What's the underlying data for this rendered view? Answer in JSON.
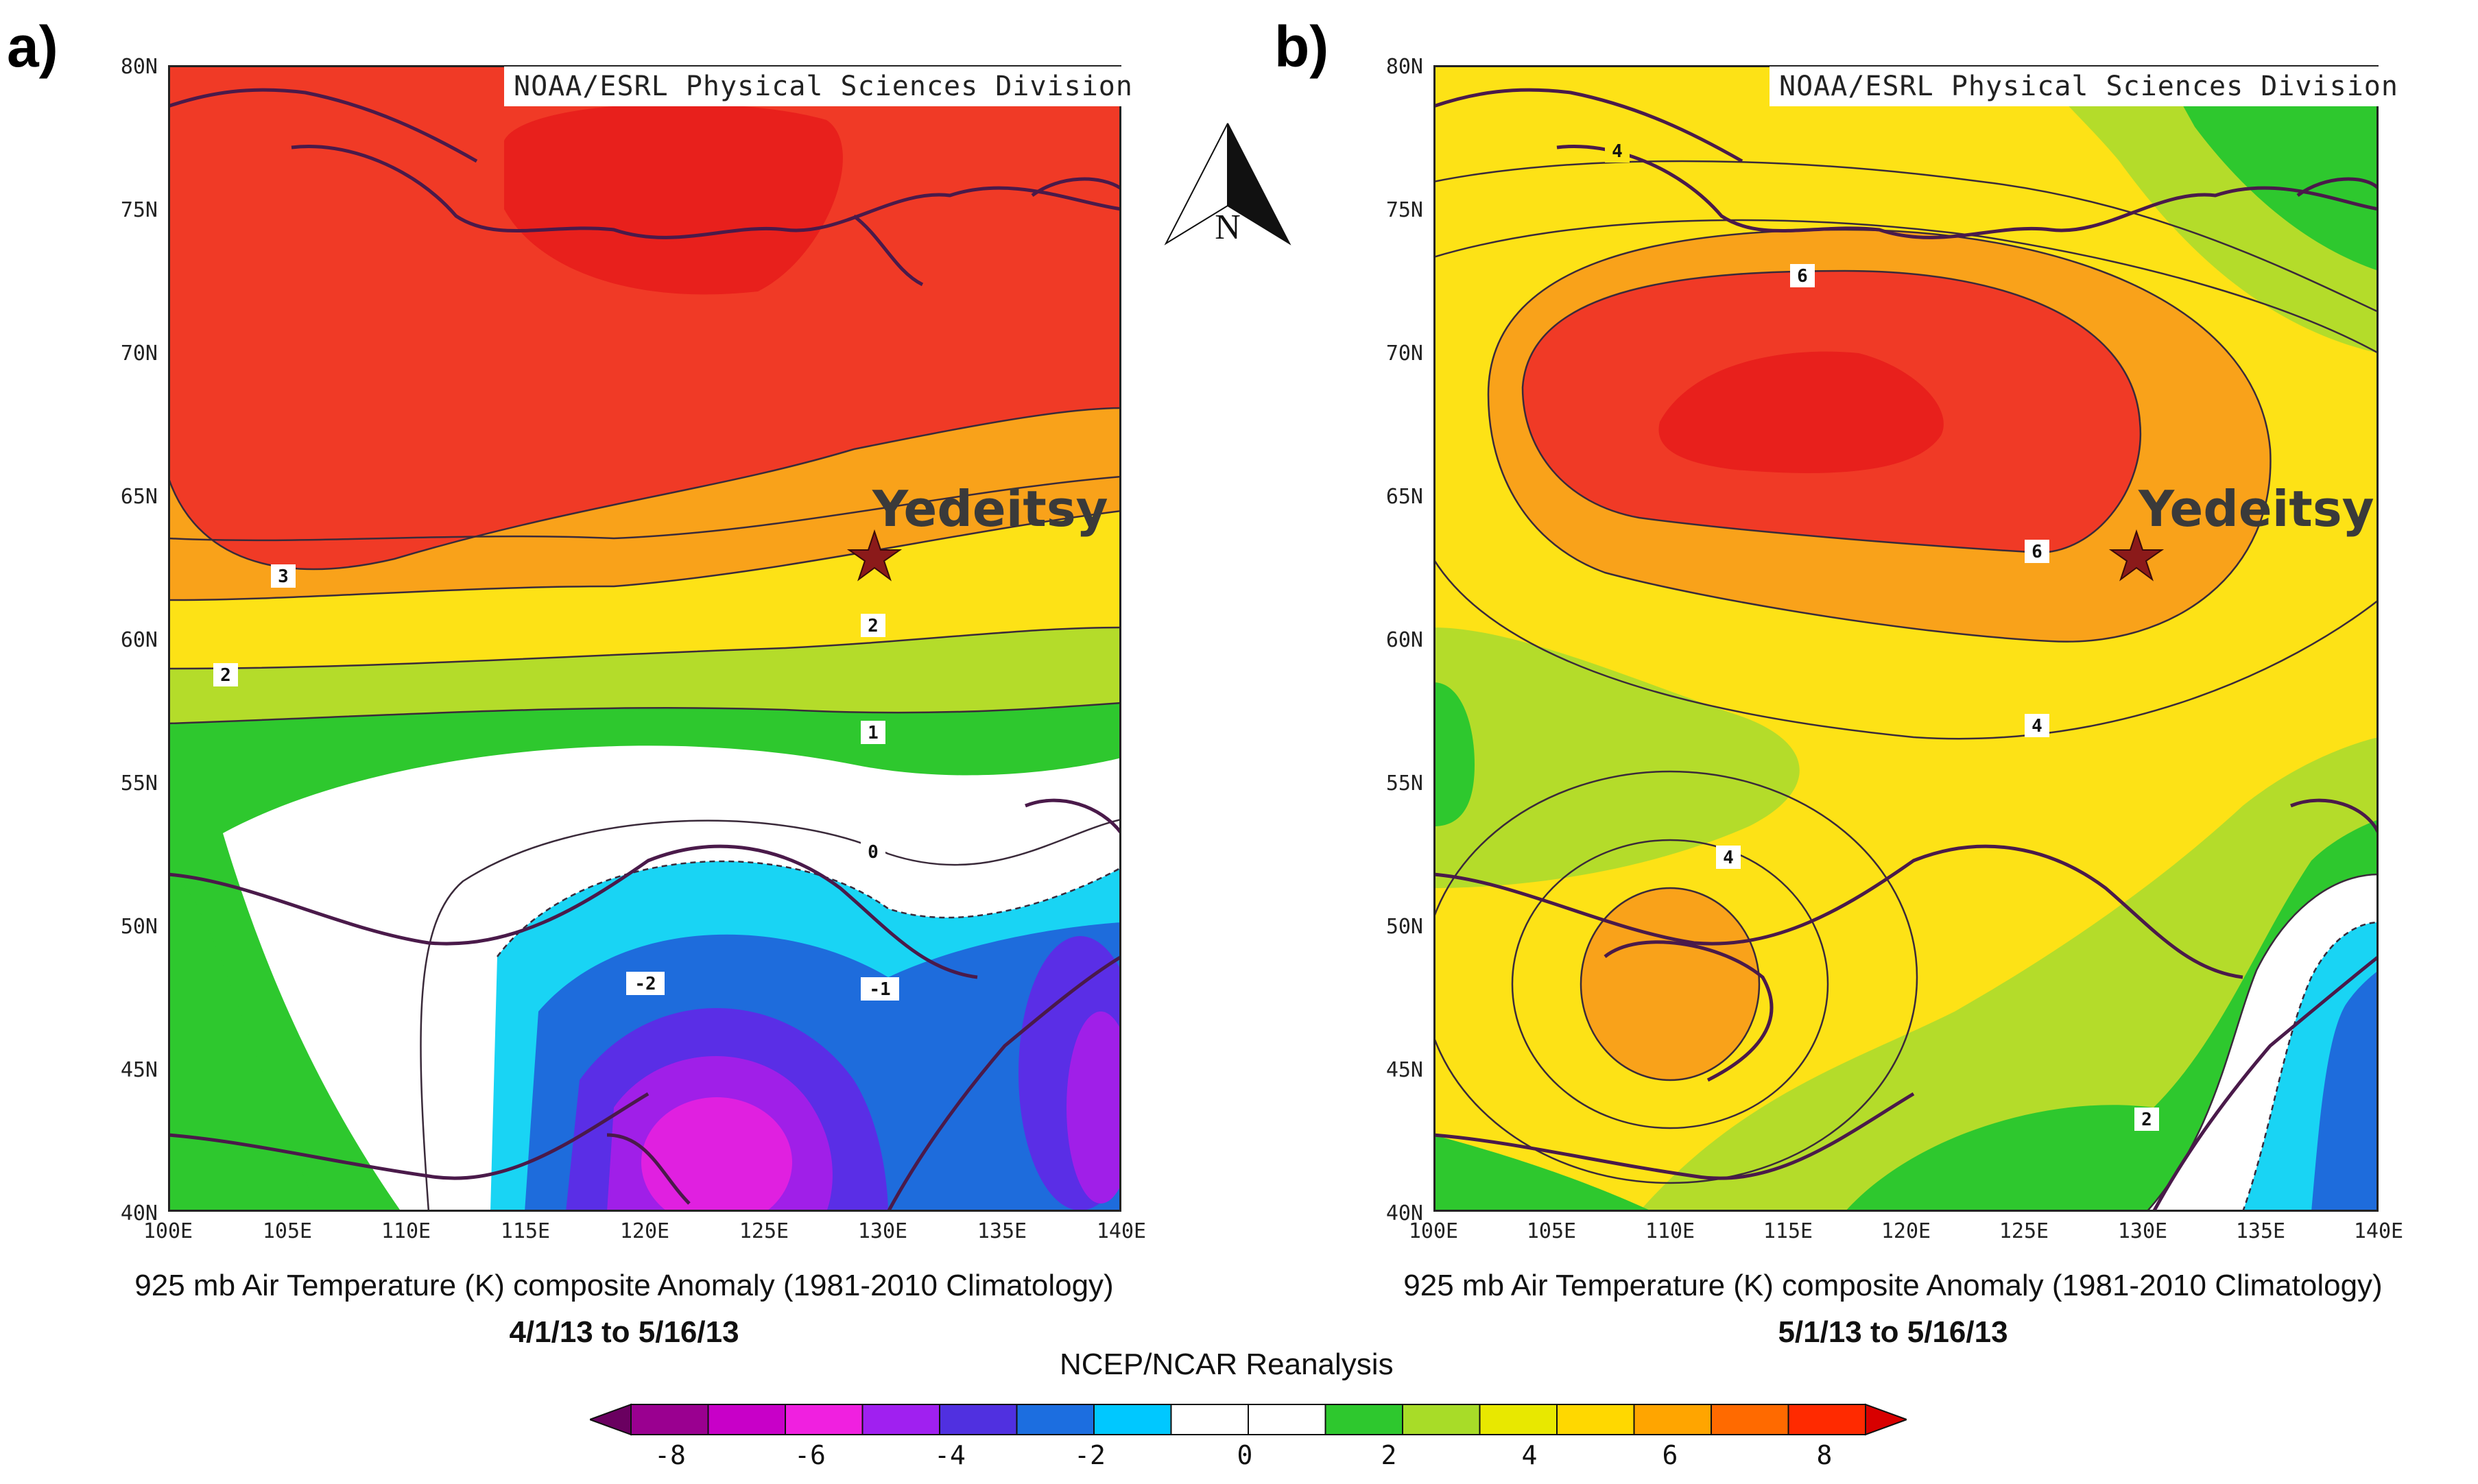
{
  "panels": [
    {
      "letter": "a)",
      "credit": "NOAA/ESRL Physical Sciences Division",
      "site_label": "Yedeitsy",
      "caption_title": "925 mb Air Temperature (K) composite Anomaly  (1981-2010 Climatology)",
      "caption_dates": "4/1/13 to 5/16/13",
      "contour_labels": [
        "3",
        "2",
        "2",
        "1",
        "0",
        "-2",
        "-1"
      ]
    },
    {
      "letter": "b)",
      "credit": "NOAA/ESRL Physical Sciences Division",
      "site_label": "Yedeitsy",
      "caption_title": "925 mb Air Temperature (K) composite Anomaly  (1981-2010 Climatology)",
      "caption_dates": "5/1/13 to 5/16/13",
      "contour_labels": [
        "4",
        "6",
        "6",
        "4",
        "4",
        "2"
      ]
    }
  ],
  "lat_labels": [
    "80N",
    "75N",
    "70N",
    "65N",
    "60N",
    "55N",
    "50N",
    "45N",
    "40N"
  ],
  "lon_labels": [
    "100E",
    "105E",
    "110E",
    "115E",
    "120E",
    "125E",
    "130E",
    "135E",
    "140E"
  ],
  "north_arrow_label": "N",
  "colorbar": {
    "title": "NCEP/NCAR Reanalysis",
    "tick_labels": [
      "-8",
      "-6",
      "-4",
      "-2",
      "0",
      "2",
      "4",
      "6",
      "8"
    ],
    "colors": [
      "#6a0060",
      "#9a0090",
      "#c800c8",
      "#f020e0",
      "#a020f0",
      "#5030e0",
      "#1c6ee0",
      "#00c8ff",
      "#ffffff",
      "#ffffff",
      "#2ec82e",
      "#a8dc28",
      "#e8e800",
      "#ffd800",
      "#ffa500",
      "#ff6a00",
      "#ff2a00",
      "#d80000"
    ]
  },
  "map_colors": {
    "red": "#f03a26",
    "red_dark": "#e8201c",
    "orange": "#f9a21a",
    "yellow": "#fde216",
    "ygreen": "#b4dc2a",
    "green": "#2ec82e",
    "white": "#ffffff",
    "cyan": "#19d4f4",
    "blue": "#1e6cdc",
    "indigo": "#5a2ee6",
    "purple": "#a01fe8",
    "magenta": "#e020e0",
    "coast": "#4a1a4a",
    "star": "#8b1a1a"
  }
}
